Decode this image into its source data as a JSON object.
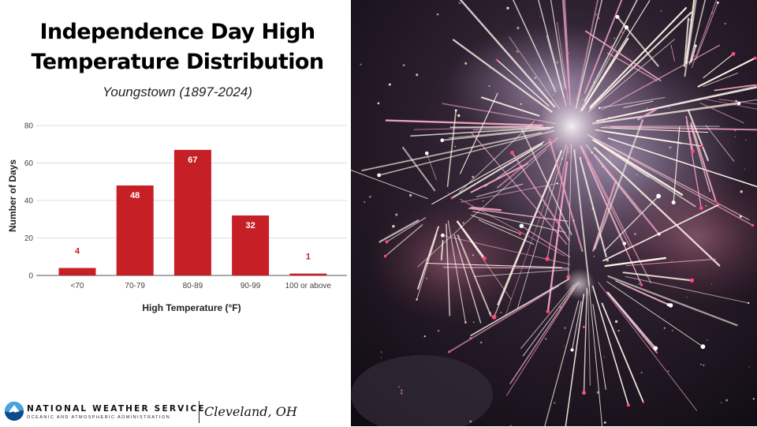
{
  "header": {
    "title_line1": "Independence Day High",
    "title_line2": "Temperature Distribution",
    "subtitle": "Youngstown (1897-2024)"
  },
  "chart_data": {
    "type": "bar",
    "categories": [
      "<70",
      "70-79",
      "80-89",
      "90-99",
      "100 or above"
    ],
    "values": [
      4,
      48,
      67,
      32,
      1
    ],
    "xlabel": "High Temperature (°F)",
    "ylabel": "Number of Days",
    "ylim": [
      0,
      80
    ],
    "yticks": [
      0,
      20,
      40,
      60,
      80
    ],
    "grid": true,
    "legend": "none",
    "bar_color": "#c62026",
    "label_color": "#c62026"
  },
  "footer": {
    "agency": "NATIONAL WEATHER SERVICE",
    "agency_sub": "OCEANIC AND ATMOSPHERIC ADMINISTRATION",
    "office": "Cleveland, OH"
  },
  "colors": {
    "accent": "#c62026",
    "night_sky": "#1a1218"
  }
}
